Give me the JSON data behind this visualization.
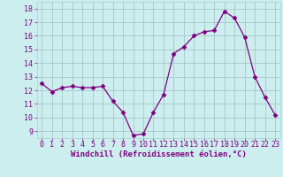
{
  "hours": [
    0,
    1,
    2,
    3,
    4,
    5,
    6,
    7,
    8,
    9,
    10,
    11,
    12,
    13,
    14,
    15,
    16,
    17,
    18,
    19,
    20,
    21,
    22,
    23
  ],
  "values": [
    12.5,
    11.9,
    12.2,
    12.3,
    12.2,
    12.2,
    12.3,
    11.2,
    10.4,
    8.7,
    8.8,
    10.4,
    11.7,
    14.7,
    15.2,
    16.0,
    16.3,
    16.4,
    17.8,
    17.3,
    15.9,
    13.0,
    11.5,
    10.2
  ],
  "line_color": "#800080",
  "marker": "D",
  "marker_size": 2.5,
  "bg_color": "#cceeee",
  "grid_color": "#aacccc",
  "ylabel_ticks": [
    9,
    10,
    11,
    12,
    13,
    14,
    15,
    16,
    17,
    18
  ],
  "xlabel": "Windchill (Refroidissement éolien,°C)",
  "ylim": [
    8.5,
    18.5
  ],
  "xlim": [
    -0.5,
    23.5
  ],
  "tick_color": "#800080",
  "font_size_xlabel": 6.5,
  "font_size_ticks": 6.0
}
